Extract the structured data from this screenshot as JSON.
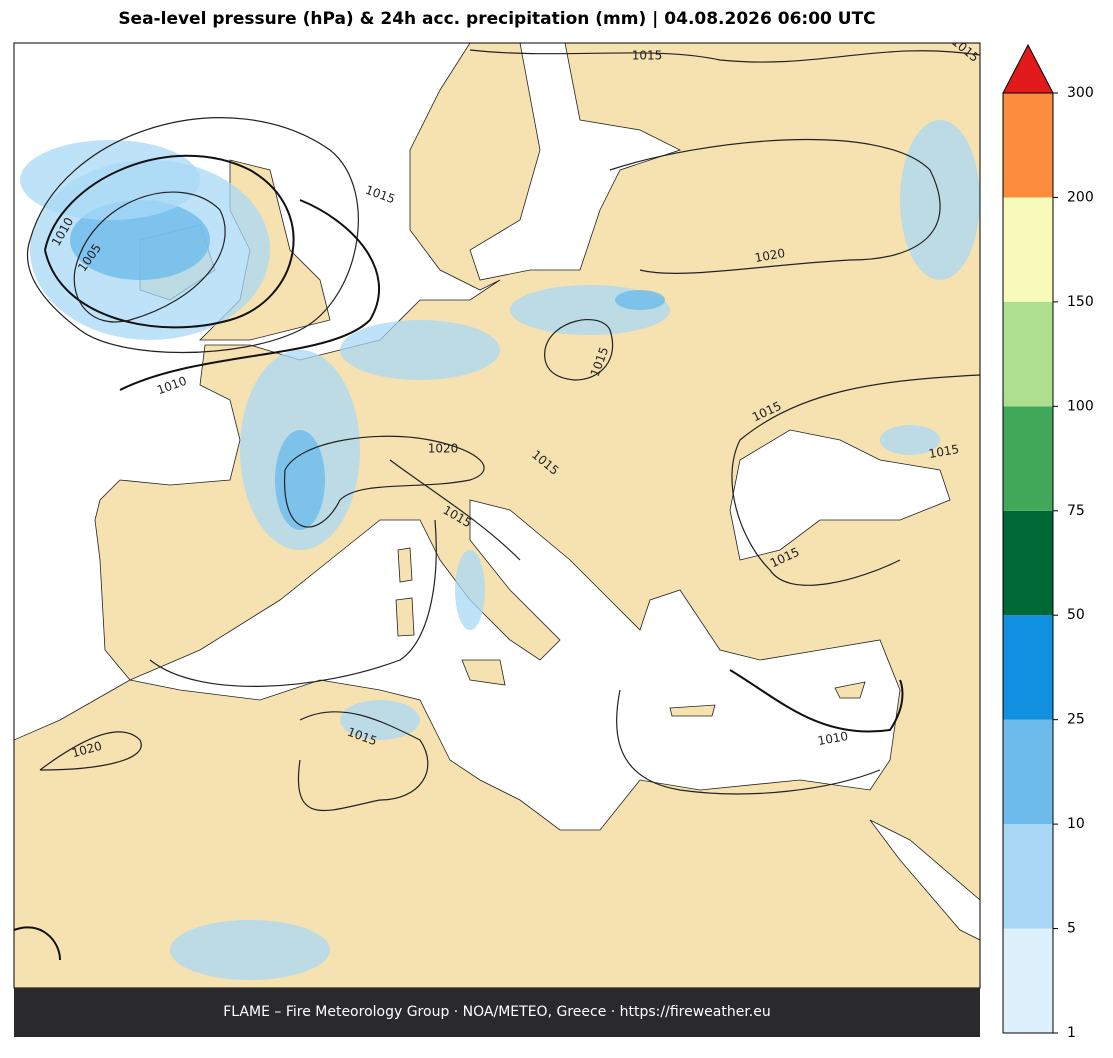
{
  "title": "Sea-level pressure (hPa) & 24h acc. precipitation (mm)  |  04.08.2026 06:00 UTC",
  "footer": "FLAME – Fire Meteorology Group · NOA/METEO, Greece · https://fireweather.eu",
  "colorbar": {
    "levels": [
      1,
      5,
      10,
      25,
      50,
      75,
      100,
      150,
      200,
      300
    ],
    "colors": [
      "#ddf1fc",
      "#a8d8f6",
      "#6dbbeb",
      "#1190e0",
      "#006837",
      "#41a85a",
      "#addf8e",
      "#f7fab9",
      "#fd8d3c"
    ],
    "extend_color": "#e31a1c"
  },
  "isobar_labels": [
    "1015",
    "1015",
    "1010",
    "1005",
    "1010",
    "1020",
    "1015",
    "1015",
    "1020",
    "1015",
    "1015",
    "1015",
    "1015",
    "1010",
    "1020",
    "1015",
    "1015"
  ]
}
